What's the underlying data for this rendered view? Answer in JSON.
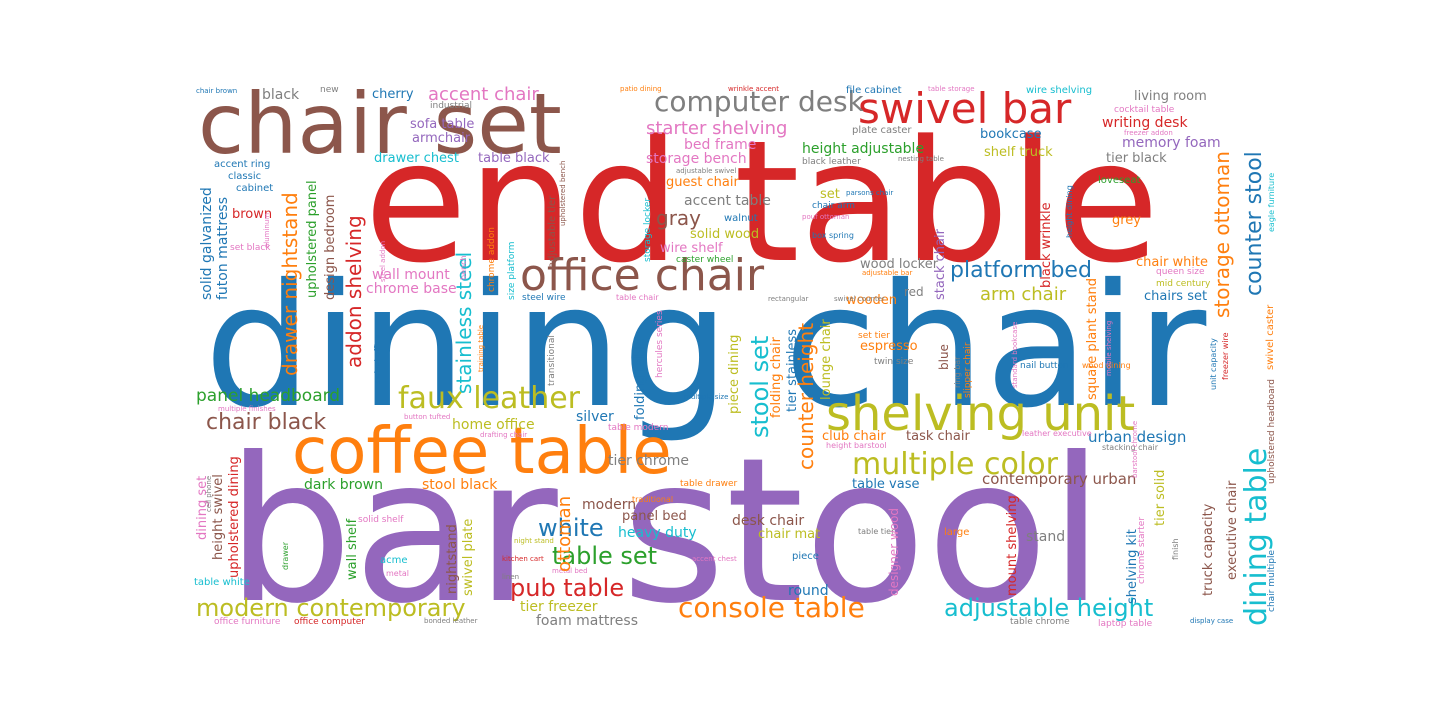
{
  "palette": {
    "blue": "#1f77b4",
    "orange": "#ff7f0e",
    "green": "#2ca02c",
    "red": "#d62728",
    "purple": "#9467bd",
    "brown": "#8c564b",
    "pink": "#e377c2",
    "gray": "#7f7f7f",
    "olive": "#bcbd22",
    "cyan": "#17becf"
  },
  "words": [
    {
      "text": "bar stool",
      "color": "purple"
    },
    {
      "text": "dining chair",
      "color": "blue"
    },
    {
      "text": "end table",
      "color": "red"
    },
    {
      "text": "chair set",
      "color": "brown"
    },
    {
      "text": "coffee table",
      "color": "orange"
    },
    {
      "text": "swivel bar",
      "color": "red"
    },
    {
      "text": "office chair",
      "color": "brown"
    },
    {
      "text": "shelving unit",
      "color": "olive"
    },
    {
      "text": "computer desk",
      "color": "gray"
    },
    {
      "text": "multiple color",
      "color": "olive"
    },
    {
      "text": "faux leather",
      "color": "olive"
    },
    {
      "text": "console table",
      "color": "orange"
    },
    {
      "text": "adjustable height",
      "color": "cyan"
    },
    {
      "text": "modern contemporary",
      "color": "olive"
    },
    {
      "text": "dining table",
      "color": "cyan"
    },
    {
      "text": "platform bed",
      "color": "blue"
    },
    {
      "text": "pub table",
      "color": "red"
    },
    {
      "text": "table set",
      "color": "green"
    },
    {
      "text": "counter stool",
      "color": "blue"
    },
    {
      "text": "chair black",
      "color": "brown"
    },
    {
      "text": "accent chair",
      "color": "pink"
    },
    {
      "text": "starter shelving",
      "color": "pink"
    },
    {
      "text": "white",
      "color": "blue"
    },
    {
      "text": "stool set",
      "color": "cyan"
    },
    {
      "text": "storage ottoman",
      "color": "orange"
    },
    {
      "text": "addon shelving",
      "color": "red"
    },
    {
      "text": "stainless steel",
      "color": "cyan"
    },
    {
      "text": "drawer nightstand",
      "color": "orange"
    },
    {
      "text": "counter height",
      "color": "orange"
    },
    {
      "text": "arm chair",
      "color": "olive"
    },
    {
      "text": "panel headboard",
      "color": "green"
    },
    {
      "text": "urban design",
      "color": "blue"
    },
    {
      "text": "contemporary urban",
      "color": "brown"
    },
    {
      "text": "gray",
      "color": "brown"
    },
    {
      "text": "accent table",
      "color": "gray"
    },
    {
      "text": "ottoman",
      "color": "orange"
    },
    {
      "text": "home office",
      "color": "olive"
    },
    {
      "text": "tier chrome",
      "color": "gray"
    },
    {
      "text": "stool black",
      "color": "orange"
    },
    {
      "text": "dark brown",
      "color": "green"
    },
    {
      "text": "wall mount",
      "color": "pink"
    },
    {
      "text": "chrome base",
      "color": "pink"
    },
    {
      "text": "heavy duty",
      "color": "cyan"
    },
    {
      "text": "modern",
      "color": "brown"
    },
    {
      "text": "desk chair",
      "color": "brown"
    },
    {
      "text": "panel bed",
      "color": "brown"
    },
    {
      "text": "tier freezer",
      "color": "olive"
    },
    {
      "text": "foam mattress",
      "color": "gray"
    },
    {
      "text": "writing desk",
      "color": "red"
    },
    {
      "text": "memory foam",
      "color": "purple"
    },
    {
      "text": "bookcase",
      "color": "blue"
    },
    {
      "text": "shelf truck",
      "color": "olive"
    },
    {
      "text": "tier black",
      "color": "gray"
    },
    {
      "text": "living room",
      "color": "gray"
    },
    {
      "text": "height adjustable",
      "color": "green"
    },
    {
      "text": "bed frame",
      "color": "pink"
    },
    {
      "text": "storage bench",
      "color": "pink"
    },
    {
      "text": "guest chair",
      "color": "orange"
    },
    {
      "text": "solid wood",
      "color": "olive"
    },
    {
      "text": "wire shelf",
      "color": "pink"
    },
    {
      "text": "chairs set",
      "color": "blue"
    },
    {
      "text": "chair white",
      "color": "orange"
    },
    {
      "text": "club chair",
      "color": "orange"
    },
    {
      "text": "task chair",
      "color": "brown"
    },
    {
      "text": "espresso",
      "color": "orange"
    },
    {
      "text": "wood locker",
      "color": "gray"
    },
    {
      "text": "wooden",
      "color": "orange"
    },
    {
      "text": "sofa table",
      "color": "purple"
    },
    {
      "text": "armchair",
      "color": "purple"
    },
    {
      "text": "drawer chest",
      "color": "cyan"
    },
    {
      "text": "table black",
      "color": "purple"
    },
    {
      "text": "cherry",
      "color": "blue"
    },
    {
      "text": "black",
      "color": "gray"
    },
    {
      "text": "brown",
      "color": "red"
    },
    {
      "text": "silver",
      "color": "blue"
    },
    {
      "text": "stand",
      "color": "gray"
    },
    {
      "text": "round",
      "color": "blue"
    },
    {
      "text": "chair mat",
      "color": "olive"
    },
    {
      "text": "grey",
      "color": "orange"
    },
    {
      "text": "loveseat",
      "color": "green"
    },
    {
      "text": "solid galvanized",
      "color": "blue"
    },
    {
      "text": "futon mattress",
      "color": "blue"
    },
    {
      "text": "upholstered panel",
      "color": "green"
    },
    {
      "text": "design bedroom",
      "color": "brown"
    },
    {
      "text": "dining set",
      "color": "pink"
    },
    {
      "text": "height swivel",
      "color": "brown"
    },
    {
      "text": "upholstered dining",
      "color": "red"
    },
    {
      "text": "wall shelf",
      "color": "green"
    },
    {
      "text": "nightstand",
      "color": "brown"
    },
    {
      "text": "swivel plate",
      "color": "olive"
    },
    {
      "text": "folding table",
      "color": "blue"
    },
    {
      "text": "piece dining",
      "color": "olive"
    },
    {
      "text": "folding chair",
      "color": "orange"
    },
    {
      "text": "tier stainless",
      "color": "blue"
    },
    {
      "text": "lounge chair",
      "color": "olive"
    },
    {
      "text": "stack chair",
      "color": "purple"
    },
    {
      "text": "black wrinkle",
      "color": "red"
    },
    {
      "text": "square plant stand",
      "color": "orange"
    },
    {
      "text": "mount shelving",
      "color": "red"
    },
    {
      "text": "designer wood",
      "color": "pink"
    },
    {
      "text": "tier solid",
      "color": "olive"
    },
    {
      "text": "shelving kit",
      "color": "blue"
    },
    {
      "text": "truck capacity",
      "color": "brown"
    },
    {
      "text": "executive chair",
      "color": "brown"
    },
    {
      "text": "set",
      "color": "olive"
    },
    {
      "text": "walnut",
      "color": "blue"
    },
    {
      "text": "blue",
      "color": "brown"
    },
    {
      "text": "red",
      "color": "gray"
    },
    {
      "text": "large",
      "color": "orange"
    },
    {
      "text": "piece",
      "color": "blue"
    },
    {
      "text": "acme",
      "color": "cyan"
    },
    {
      "text": "table vase",
      "color": "blue"
    },
    {
      "text": "new",
      "color": "gray"
    },
    {
      "text": "industrial",
      "color": "gray"
    },
    {
      "text": "chair brown",
      "color": "blue"
    },
    {
      "text": "patio dining",
      "color": "orange"
    },
    {
      "text": "wrinkle accent",
      "color": "red"
    },
    {
      "text": "file cabinet",
      "color": "blue"
    },
    {
      "text": "table storage",
      "color": "pink"
    },
    {
      "text": "wire shelving",
      "color": "cyan"
    },
    {
      "text": "cocktail table",
      "color": "pink"
    },
    {
      "text": "freezer addon",
      "color": "pink"
    },
    {
      "text": "plate caster",
      "color": "gray"
    },
    {
      "text": "black leather",
      "color": "gray"
    },
    {
      "text": "nesting table",
      "color": "gray"
    },
    {
      "text": "adjustable swivel",
      "color": "gray"
    },
    {
      "text": "accent ring",
      "color": "blue"
    },
    {
      "text": "classic",
      "color": "blue"
    },
    {
      "text": "cabinet",
      "color": "blue"
    },
    {
      "text": "set black",
      "color": "pink"
    },
    {
      "text": "steel addon",
      "color": "pink"
    },
    {
      "text": "steel wire",
      "color": "blue"
    },
    {
      "text": "table chair",
      "color": "pink"
    },
    {
      "text": "caster wheel",
      "color": "green"
    },
    {
      "text": "chrome addon",
      "color": "orange"
    },
    {
      "text": "size platform",
      "color": "cyan"
    },
    {
      "text": "adjustable tier",
      "color": "brown"
    },
    {
      "text": "upholstered bench",
      "color": "brown"
    },
    {
      "text": "storage locker",
      "color": "cyan"
    },
    {
      "text": "chair arm",
      "color": "blue"
    },
    {
      "text": "box spring",
      "color": "blue"
    },
    {
      "text": "pouf ottoman",
      "color": "pink"
    },
    {
      "text": "parsons chair",
      "color": "blue"
    },
    {
      "text": "adjustable bar",
      "color": "orange"
    },
    {
      "text": "rectangular",
      "color": "gray"
    },
    {
      "text": "swivel counter",
      "color": "gray"
    },
    {
      "text": "queen size",
      "color": "pink"
    },
    {
      "text": "mid century",
      "color": "olive"
    },
    {
      "text": "set tier",
      "color": "orange"
    },
    {
      "text": "twin size",
      "color": "gray"
    },
    {
      "text": "nail button",
      "color": "blue"
    },
    {
      "text": "wood dining",
      "color": "orange"
    },
    {
      "text": "ring bar",
      "color": "gray"
    },
    {
      "text": "slipper chair",
      "color": "orange"
    },
    {
      "text": "standard bookcase",
      "color": "pink"
    },
    {
      "text": "mobile shelving",
      "color": "pink"
    },
    {
      "text": "unit capacity",
      "color": "blue"
    },
    {
      "text": "freezer wire",
      "color": "red"
    },
    {
      "text": "upholstered headboard",
      "color": "brown"
    },
    {
      "text": "swivel caster",
      "color": "orange"
    },
    {
      "text": "eagle furniture",
      "color": "cyan"
    },
    {
      "text": "height dining",
      "color": "blue"
    },
    {
      "text": "barstool chrome",
      "color": "pink"
    },
    {
      "text": "leather executive",
      "color": "pink"
    },
    {
      "text": "stacking chair",
      "color": "gray"
    },
    {
      "text": "height barstool",
      "color": "pink"
    },
    {
      "text": "table drawer",
      "color": "orange"
    },
    {
      "text": "traditional",
      "color": "orange"
    },
    {
      "text": "table modern",
      "color": "pink"
    },
    {
      "text": "drafting chair",
      "color": "pink"
    },
    {
      "text": "button tufted",
      "color": "pink"
    },
    {
      "text": "multiple finishes",
      "color": "pink"
    },
    {
      "text": "cell phone",
      "color": "gray"
    },
    {
      "text": "solid shelf",
      "color": "pink"
    },
    {
      "text": "night stand",
      "color": "olive"
    },
    {
      "text": "kitchen cart",
      "color": "red"
    },
    {
      "text": "accent chest",
      "color": "pink"
    },
    {
      "text": "metal bed",
      "color": "pink"
    },
    {
      "text": "linen",
      "color": "gray"
    },
    {
      "text": "metal",
      "color": "pink"
    },
    {
      "text": "table tier",
      "color": "gray"
    },
    {
      "text": "drawer",
      "color": "green"
    },
    {
      "text": "table white",
      "color": "cyan"
    },
    {
      "text": "office furniture",
      "color": "pink"
    },
    {
      "text": "office computer",
      "color": "red"
    },
    {
      "text": "bonded leather",
      "color": "gray"
    },
    {
      "text": "table chrome",
      "color": "gray"
    },
    {
      "text": "laptop table",
      "color": "pink"
    },
    {
      "text": "display case",
      "color": "blue"
    },
    {
      "text": "chair multiple",
      "color": "blue"
    },
    {
      "text": "chrome starter",
      "color": "pink"
    },
    {
      "text": "finish",
      "color": "gray"
    },
    {
      "text": "multiple size",
      "color": "blue"
    },
    {
      "text": "transitional",
      "color": "gray"
    },
    {
      "text": "hercules series",
      "color": "pink"
    },
    {
      "text": "training table",
      "color": "orange"
    },
    {
      "text": "swivel office",
      "color": "blue"
    },
    {
      "text": "bench",
      "color": "pink"
    },
    {
      "text": "aluminum",
      "color": "pink"
    }
  ]
}
